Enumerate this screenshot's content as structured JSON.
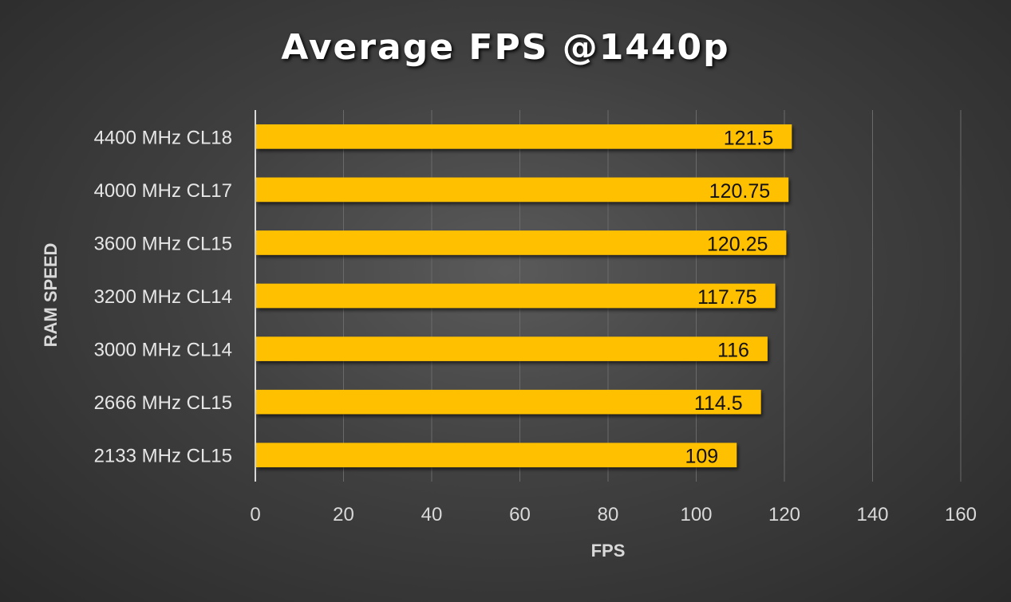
{
  "chart_data": {
    "type": "bar",
    "orientation": "horizontal",
    "title": "Average FPS @1440p",
    "xlabel": "FPS",
    "ylabel": "RAM SPEED",
    "categories": [
      "4400 MHz CL18",
      "4000 MHz CL17",
      "3600 MHz CL15",
      "3200 MHz CL14",
      "3000 MHz CL14",
      "2666 MHz CL15",
      "2133 MHz CL15"
    ],
    "values": [
      121.5,
      120.75,
      120.25,
      117.75,
      116,
      114.5,
      109
    ],
    "value_labels": [
      "121.5",
      "120.75",
      "120.25",
      "117.75",
      "116",
      "114.5",
      "109"
    ],
    "xlim": [
      0,
      160
    ],
    "xticks": [
      0,
      20,
      40,
      60,
      80,
      100,
      120,
      140,
      160
    ],
    "grid": "vertical",
    "bar_color": "#ffc000",
    "background_color": "#404040"
  }
}
